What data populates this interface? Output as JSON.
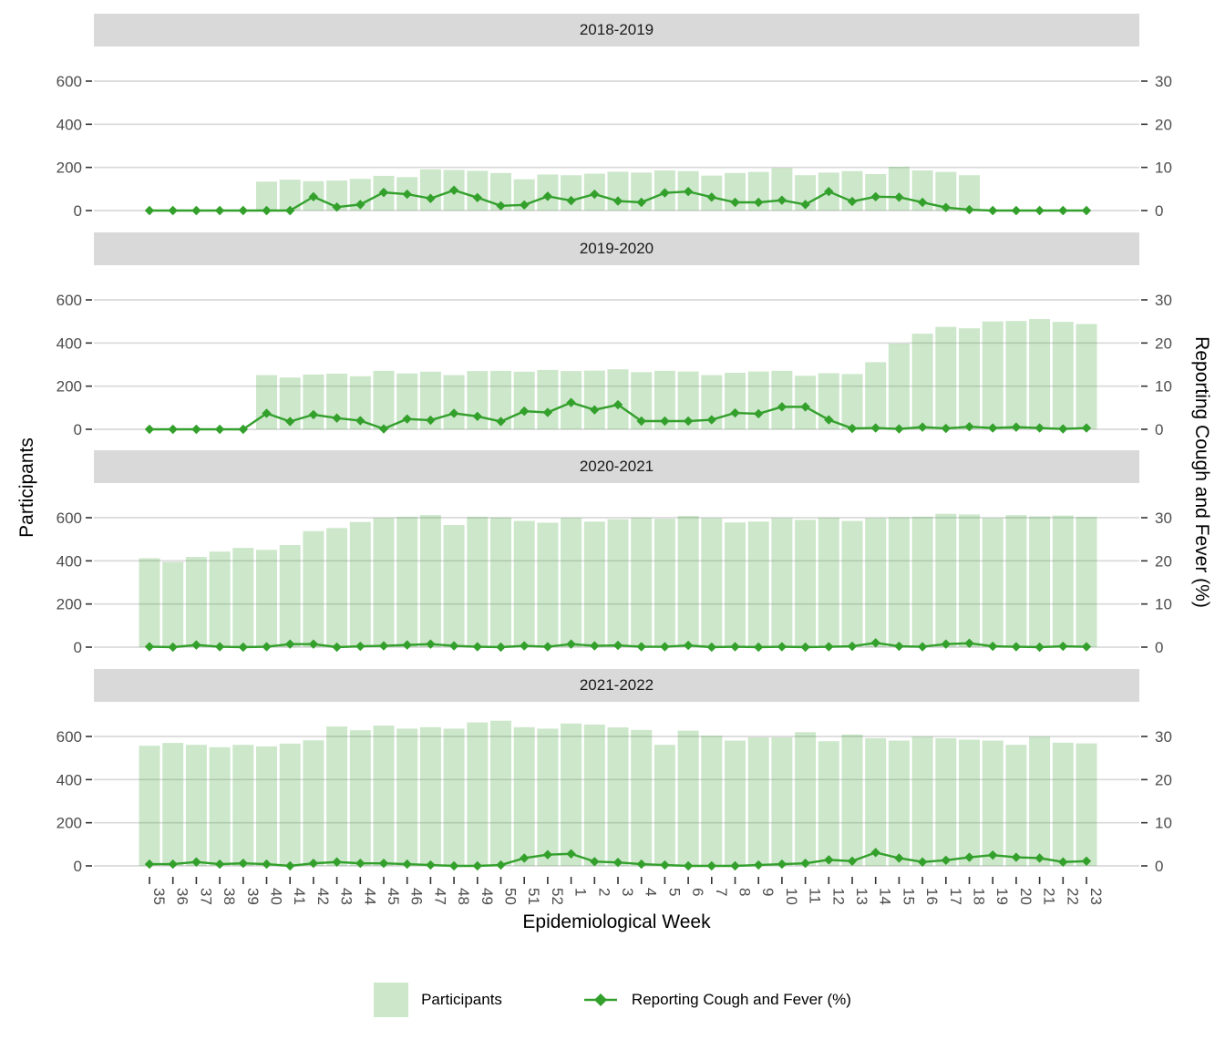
{
  "chart_data": {
    "type": "bar+line dual-axis, 4 facets",
    "categories": [
      "35",
      "36",
      "37",
      "38",
      "39",
      "40",
      "41",
      "42",
      "43",
      "44",
      "45",
      "46",
      "47",
      "48",
      "49",
      "50",
      "51",
      "52",
      "1",
      "2",
      "3",
      "4",
      "5",
      "6",
      "7",
      "8",
      "9",
      "10",
      "11",
      "12",
      "13",
      "14",
      "15",
      "16",
      "17",
      "18",
      "19",
      "20",
      "21",
      "22",
      "23"
    ],
    "facets": [
      {
        "title": "2018-2019",
        "participants": [
          null,
          null,
          null,
          null,
          null,
          134,
          143,
          136,
          139,
          147,
          161,
          155,
          191,
          188,
          184,
          174,
          145,
          167,
          164,
          171,
          180,
          176,
          186,
          183,
          162,
          174,
          179,
          197,
          164,
          176,
          183,
          169,
          203,
          186,
          179,
          164,
          null,
          null,
          null,
          null,
          null
        ],
        "cough_fever_pct": [
          0,
          0,
          0,
          0,
          0,
          0,
          0,
          3.2,
          0.8,
          1.4,
          4.2,
          3.8,
          2.8,
          4.7,
          3.0,
          1.1,
          1.3,
          3.3,
          2.3,
          3.8,
          2.2,
          1.9,
          4.1,
          4.4,
          3.1,
          1.9,
          1.9,
          2.4,
          1.4,
          4.4,
          2.1,
          3.2,
          3.1,
          1.9,
          0.7,
          0.2,
          0,
          0,
          0,
          0,
          0
        ]
      },
      {
        "title": "2019-2020",
        "participants": [
          null,
          null,
          null,
          null,
          null,
          251,
          240,
          254,
          258,
          246,
          271,
          259,
          267,
          251,
          270,
          271,
          267,
          275,
          270,
          272,
          278,
          265,
          271,
          268,
          251,
          262,
          268,
          271,
          248,
          260,
          256,
          311,
          397,
          443,
          475,
          468,
          500,
          502,
          511,
          498,
          488
        ],
        "cough_fever_pct": [
          0,
          0,
          0,
          0,
          0,
          3.7,
          1.8,
          3.4,
          2.6,
          2.0,
          0.1,
          2.4,
          2.1,
          3.7,
          3.0,
          1.8,
          4.2,
          3.9,
          6.2,
          4.5,
          5.7,
          1.9,
          1.9,
          1.9,
          2.2,
          3.8,
          3.6,
          5.2,
          5.2,
          2.2,
          0.2,
          0.3,
          0.1,
          0.5,
          0.2,
          0.6,
          0.3,
          0.5,
          0.3,
          0.1,
          0.3
        ]
      },
      {
        "title": "2020-2021",
        "participants": [
          412,
          395,
          418,
          443,
          460,
          451,
          473,
          538,
          552,
          580,
          599,
          604,
          612,
          566,
          604,
          601,
          585,
          577,
          599,
          582,
          593,
          600,
          595,
          608,
          598,
          578,
          582,
          598,
          590,
          600,
          585,
          598,
          602,
          605,
          618,
          615,
          598,
          612,
          606,
          610,
          604
        ],
        "cough_fever_pct": [
          0.1,
          0,
          0.5,
          0.1,
          0,
          0.1,
          0.7,
          0.7,
          0,
          0.2,
          0.3,
          0.5,
          0.7,
          0.3,
          0.1,
          0,
          0.3,
          0.1,
          0.7,
          0.3,
          0.4,
          0.1,
          0.1,
          0.4,
          0,
          0.1,
          0,
          0.1,
          0,
          0.1,
          0.2,
          1.0,
          0.2,
          0.1,
          0.7,
          0.9,
          0.2,
          0.1,
          0,
          0.2,
          0.1
        ]
      },
      {
        "title": "2021-2022",
        "participants": [
          557,
          570,
          561,
          550,
          561,
          554,
          567,
          582,
          646,
          629,
          650,
          636,
          643,
          636,
          665,
          673,
          643,
          636,
          660,
          655,
          642,
          630,
          561,
          627,
          603,
          581,
          596,
          596,
          620,
          578,
          609,
          592,
          581,
          599,
          592,
          585,
          581,
          561,
          599,
          571,
          568
        ],
        "cough_fever_pct": [
          0.4,
          0.4,
          0.9,
          0.4,
          0.6,
          0.4,
          0,
          0.6,
          0.9,
          0.6,
          0.6,
          0.4,
          0.2,
          0,
          0,
          0.2,
          1.8,
          2.6,
          2.8,
          1.0,
          0.8,
          0.4,
          0.2,
          0,
          0,
          0,
          0.2,
          0.4,
          0.6,
          1.4,
          1.1,
          3.1,
          1.8,
          0.9,
          1.3,
          2.0,
          2.5,
          2.0,
          1.8,
          0.9,
          1.1
        ]
      }
    ],
    "left_axis": {
      "label": "Participants",
      "ticks": [
        0,
        200,
        400,
        600
      ],
      "max": 600
    },
    "right_axis": {
      "label": "Reporting Cough and Fever (%)",
      "ticks": [
        0,
        10,
        20,
        30
      ],
      "max": 30
    },
    "xlabel": "Epidemiological Week",
    "legend": [
      {
        "type": "bar",
        "label": "Participants"
      },
      {
        "type": "line",
        "label": "Reporting Cough and Fever (%)"
      }
    ],
    "colors": {
      "bar_fill": "rgba(51,160,44,0.25)",
      "line": "#33a02c",
      "strip_bg": "#d9d9d9",
      "gridline": "#d9d9d9",
      "tick_text": "#4d4d4d",
      "tick_mark": "#333333",
      "strip_text": "#1a1a1a",
      "axis_title": "#000000"
    },
    "layout": {
      "grid": "horizontal major only",
      "legend_position": "bottom",
      "x_labels_rotated_90": true
    }
  }
}
